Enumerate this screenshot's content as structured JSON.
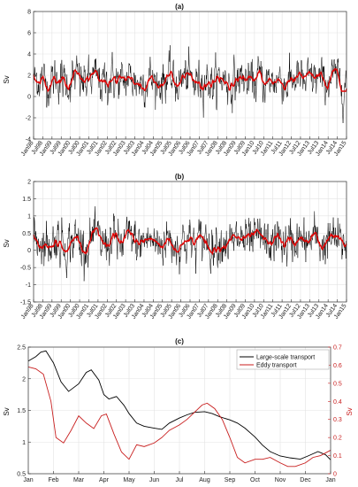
{
  "chart_data": [
    {
      "type": "line",
      "title": "(a)",
      "ylabel": "Sv",
      "ylim": [
        -4,
        8
      ],
      "yticks": [
        -4,
        -2,
        0,
        2,
        4,
        6,
        8
      ],
      "x_start": "1998-01",
      "x_end": "2015-01",
      "x_ticks": [
        "Jan98",
        "Jul98",
        "Jan99",
        "Jul99",
        "Jan00",
        "Jul00",
        "Jan01",
        "Jul01",
        "Jan02",
        "Jul02",
        "Jan03",
        "Jul03",
        "Jan04",
        "Jul04",
        "Jan05",
        "Jul05",
        "Jan06",
        "Jul06",
        "Jan07",
        "Jul07",
        "Jan08",
        "Jul08",
        "Jan09",
        "Jul09",
        "Jan10",
        "Jul10",
        "Jan11",
        "Jul11",
        "Jan12",
        "Jul12",
        "Jan13",
        "Jul13",
        "Jan14",
        "Jul14",
        "Jan15"
      ],
      "grid": true,
      "series": [
        {
          "kind": "raw",
          "color": "#000000",
          "mean": 1.5,
          "amplitude": 1.7,
          "range": [
            -2.5,
            6.6
          ]
        },
        {
          "kind": "smoothed",
          "color": "#e00000",
          "mean": 1.5,
          "range": [
            0.5,
            2.6
          ]
        }
      ]
    },
    {
      "type": "line",
      "title": "(b)",
      "ylabel": "Sv",
      "ylim": [
        -1.5,
        2
      ],
      "yticks": [
        -1.5,
        -1,
        -0.5,
        0,
        0.5,
        1,
        1.5,
        2
      ],
      "x_start": "1998-01",
      "x_end": "2015-01",
      "x_ticks": [
        "Jan98",
        "Jul98",
        "Jan99",
        "Jul99",
        "Jan00",
        "Jul00",
        "Jan01",
        "Jul01",
        "Jan02",
        "Jul02",
        "Jan03",
        "Jul03",
        "Jan04",
        "Jul04",
        "Jan05",
        "Jul05",
        "Jan06",
        "Jul06",
        "Jan07",
        "Jul07",
        "Jan08",
        "Jul08",
        "Jan09",
        "Jul09",
        "Jan10",
        "Jul10",
        "Jan11",
        "Jul11",
        "Jan12",
        "Jul12",
        "Jan13",
        "Jul13",
        "Jan14",
        "Jul14",
        "Jan15"
      ],
      "grid": true,
      "series": [
        {
          "kind": "raw",
          "color": "#000000",
          "mean": 0.25,
          "amplitude": 0.55,
          "range": [
            -1.1,
            1.65
          ]
        },
        {
          "kind": "smoothed",
          "color": "#e00000",
          "mean": 0.25,
          "range": [
            -0.2,
            0.65
          ]
        }
      ]
    },
    {
      "type": "line",
      "title": "(c)",
      "ylabel": "Sv",
      "ylabel_right": "Sv",
      "ylim": [
        0.5,
        2.5
      ],
      "ylim_right": [
        0,
        0.7
      ],
      "yticks": [
        0.5,
        1,
        1.5,
        2,
        2.5
      ],
      "yticks_right": [
        0,
        0.1,
        0.2,
        0.3,
        0.4,
        0.5,
        0.6,
        0.7
      ],
      "categories": [
        "Jan",
        "Feb",
        "Mar",
        "Apr",
        "May",
        "Jun",
        "Jul",
        "Aug",
        "Sep",
        "Oct",
        "Nov",
        "Dec",
        "Jan"
      ],
      "grid": true,
      "legend_position": "top-right",
      "series": [
        {
          "name": "Large-scale transport",
          "axis": "left",
          "color": "#000000",
          "x": [
            0,
            0.3,
            0.5,
            0.7,
            1.0,
            1.3,
            1.6,
            2.0,
            2.3,
            2.5,
            2.8,
            3.0,
            3.2,
            3.5,
            3.8,
            4.0,
            4.3,
            4.6,
            5.0,
            5.3,
            5.6,
            6.0,
            6.3,
            6.6,
            7.0,
            7.3,
            7.6,
            8.0,
            8.3,
            8.6,
            9.0,
            9.3,
            9.6,
            10.0,
            10.4,
            10.8,
            11.1,
            11.5,
            11.8,
            12.0
          ],
          "y": [
            2.28,
            2.35,
            2.42,
            2.44,
            2.25,
            1.95,
            1.8,
            1.92,
            2.1,
            2.14,
            1.98,
            1.75,
            1.68,
            1.72,
            1.58,
            1.45,
            1.3,
            1.25,
            1.22,
            1.2,
            1.3,
            1.38,
            1.43,
            1.47,
            1.48,
            1.45,
            1.4,
            1.35,
            1.3,
            1.22,
            1.08,
            0.95,
            0.85,
            0.78,
            0.75,
            0.73,
            0.78,
            0.85,
            0.8,
            0.72
          ]
        },
        {
          "name": "Eddy transport",
          "axis": "right",
          "color": "#c81e1e",
          "x": [
            0,
            0.3,
            0.6,
            0.9,
            1.1,
            1.4,
            1.7,
            2.0,
            2.3,
            2.6,
            2.9,
            3.1,
            3.4,
            3.7,
            4.0,
            4.3,
            4.6,
            5.0,
            5.3,
            5.6,
            6.0,
            6.3,
            6.6,
            6.9,
            7.1,
            7.4,
            7.7,
            8.0,
            8.3,
            8.6,
            9.0,
            9.3,
            9.6,
            10.0,
            10.3,
            10.6,
            11.0,
            11.3,
            11.6,
            12.0
          ],
          "y": [
            0.59,
            0.58,
            0.55,
            0.4,
            0.2,
            0.17,
            0.24,
            0.32,
            0.28,
            0.25,
            0.32,
            0.33,
            0.22,
            0.12,
            0.08,
            0.16,
            0.15,
            0.17,
            0.2,
            0.24,
            0.27,
            0.3,
            0.34,
            0.38,
            0.39,
            0.36,
            0.3,
            0.2,
            0.09,
            0.06,
            0.08,
            0.08,
            0.09,
            0.06,
            0.04,
            0.04,
            0.06,
            0.09,
            0.1,
            0.13
          ]
        }
      ]
    }
  ]
}
